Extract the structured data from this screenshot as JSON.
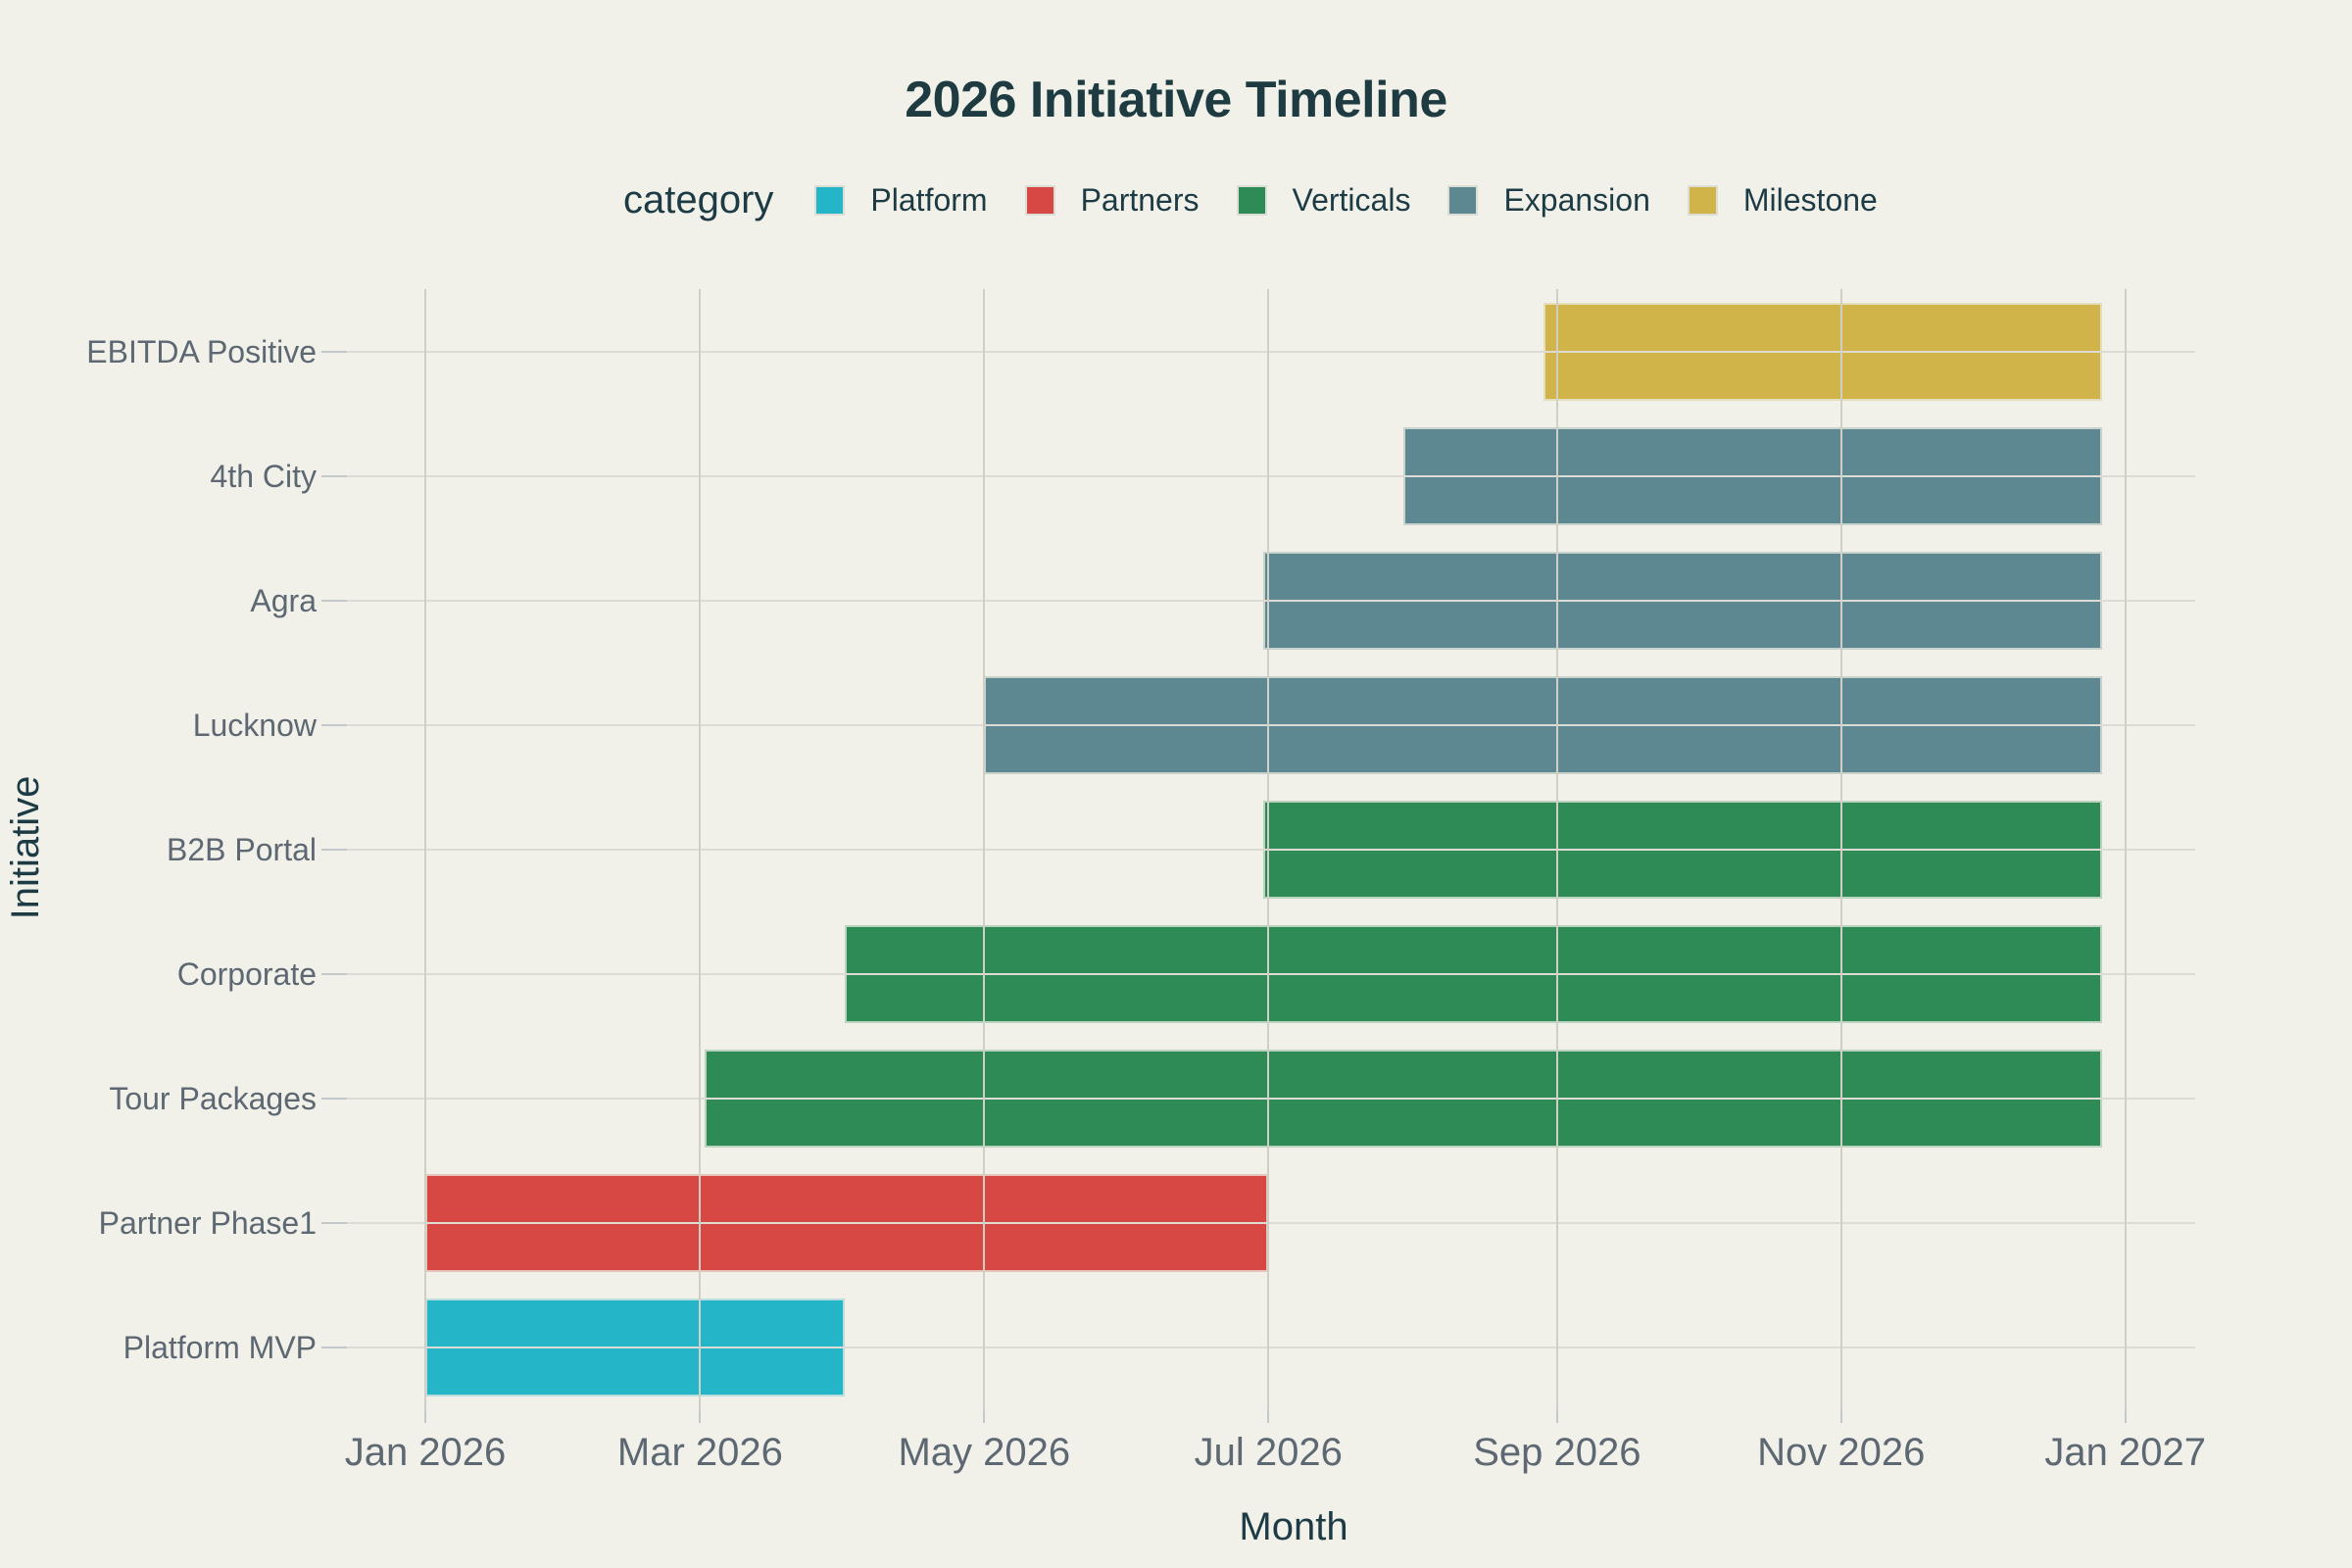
{
  "chart_data": {
    "type": "gantt",
    "title": "2026 Initiative Timeline",
    "legend_title": "category",
    "xlabel": "Month",
    "ylabel": "Initiative",
    "legend_position": "top-center",
    "grid": true,
    "x_range": [
      "2026-01-01",
      "2027-01-16"
    ],
    "x_ticks": [
      {
        "label": "Jan 2026",
        "date": "2026-01-01"
      },
      {
        "label": "Mar 2026",
        "date": "2026-03-01"
      },
      {
        "label": "May 2026",
        "date": "2026-05-01"
      },
      {
        "label": "Jul 2026",
        "date": "2026-07-01"
      },
      {
        "label": "Sep 2026",
        "date": "2026-09-01"
      },
      {
        "label": "Nov 2026",
        "date": "2026-11-01"
      },
      {
        "label": "Jan 2027",
        "date": "2027-01-01"
      }
    ],
    "categories": [
      {
        "name": "Platform",
        "color": "#24b5c9"
      },
      {
        "name": "Partners",
        "color": "#d74845"
      },
      {
        "name": "Verticals",
        "color": "#2e8b55"
      },
      {
        "name": "Expansion",
        "color": "#5d8791"
      },
      {
        "name": "Milestone",
        "color": "#d0b44a"
      }
    ],
    "tasks": [
      {
        "label": "EBITDA Positive",
        "category": "Milestone",
        "start": "2026-08-29",
        "end": "2026-12-27"
      },
      {
        "label": "4th City",
        "category": "Expansion",
        "start": "2026-07-30",
        "end": "2026-12-27"
      },
      {
        "label": "Agra",
        "category": "Expansion",
        "start": "2026-06-30",
        "end": "2026-12-27"
      },
      {
        "label": "Lucknow",
        "category": "Expansion",
        "start": "2026-05-01",
        "end": "2026-12-27"
      },
      {
        "label": "B2B Portal",
        "category": "Verticals",
        "start": "2026-06-30",
        "end": "2026-12-27"
      },
      {
        "label": "Corporate",
        "category": "Verticals",
        "start": "2026-04-01",
        "end": "2026-12-27"
      },
      {
        "label": "Tour Packages",
        "category": "Verticals",
        "start": "2026-03-02",
        "end": "2026-12-27"
      },
      {
        "label": "Partner Phase1",
        "category": "Partners",
        "start": "2026-01-01",
        "end": "2026-07-01"
      },
      {
        "label": "Platform MVP",
        "category": "Platform",
        "start": "2026-01-01",
        "end": "2026-04-01"
      }
    ]
  },
  "theme": {
    "background": "#f1f1ea",
    "title_color": "#1d3b40",
    "axis_title_color": "#1d3b44",
    "tick_label_color": "#5d6872",
    "legend_text_color": "#1d3b44",
    "gridline_color": "#dcdcd4",
    "vgridline_color": "#cfcfc8",
    "tick_mark_color": "#c3c8ca"
  }
}
